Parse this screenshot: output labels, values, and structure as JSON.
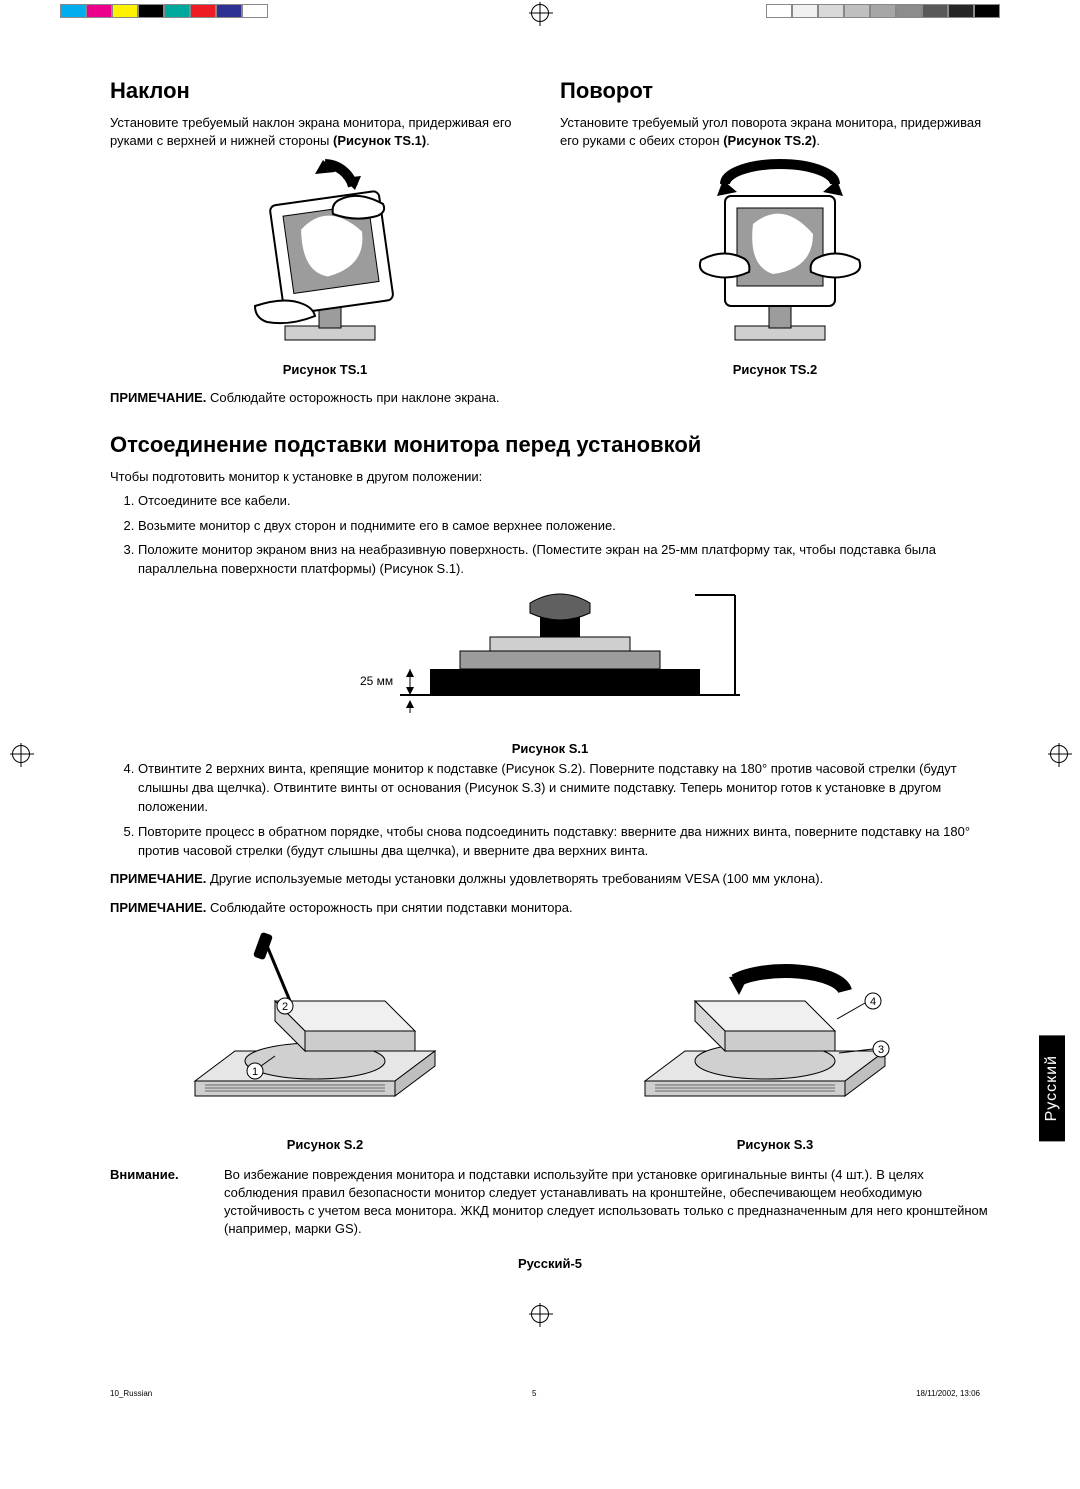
{
  "print_marks": {
    "bar_colors_left": [
      "#00aeef",
      "#ec008c",
      "#fff200",
      "#000000",
      "#00a99d",
      "#ed1c24",
      "#2e3192",
      "#ffffff"
    ],
    "bar_colors_right": [
      "#ffffff",
      "#f1f1f1",
      "#d9d9d9",
      "#bfbfbf",
      "#a6a6a6",
      "#8c8c8c",
      "#595959",
      "#262626",
      "#000000"
    ]
  },
  "tilt": {
    "heading": "Наклон",
    "body": "Установите требуемый наклон экрана монитора, придерживая его руками с верхней и нижней стороны",
    "ref_bold": "(Рисунок TS.1)",
    "caption": "Рисунок TS.1"
  },
  "swivel": {
    "heading": "Поворот",
    "body": "Установите требуемый угол поворота экрана монитора, придерживая его руками с обеих сторон",
    "ref_bold": "(Рисунок TS.2)",
    "caption": "Рисунок TS.2"
  },
  "note1": {
    "label": "ПРИМЕЧАНИЕ.",
    "text": "Соблюдайте осторожность при наклоне экрана."
  },
  "detach": {
    "heading": "Отсоединение подставки монитора перед установкой",
    "intro": "Чтобы подготовить монитор к установке в другом положении:",
    "steps_1_3": [
      "Отсоедините все кабели.",
      "Возьмите монитор с двух сторон и поднимите его в самое верхнее положение.",
      "Положите монитор экраном вниз на неабразивную поверхность. (Поместите экран на 25-мм платформу так, чтобы подставка была параллельна поверхности платформы) (Рисунок S.1)."
    ],
    "step3_bold": "Рисунок S.1",
    "s1_label": "25 мм",
    "s1_caption": "Рисунок S.1",
    "steps_4_5": [
      "Отвинтите 2 верхних винта, крепящие монитор к подставке (Рисунок S.2). Поверните подставку на 180° против часовой стрелки (будут слышны два щелчка). Отвинтите винты от основания (Рисунок S.3) и снимите подставку. Теперь монитор готов к установке в другом положении.",
      "Повторите процесс в обратном порядке, чтобы снова подсоединить подставку: вверните два нижних винта, поверните подставку на 180° против часовой стрелки (будут слышны два щелчка), и вверните два верхних винта."
    ],
    "s2_caption": "Рисунок S.2",
    "s3_caption": "Рисунок S.3"
  },
  "note2": {
    "label": "ПРИМЕЧАНИЕ.",
    "text": "Другие используемые методы установки должны удовлетворять требованиям VESA (100 мм уклона)."
  },
  "note3": {
    "label": "ПРИМЕЧАНИЕ.",
    "text": "Соблюдайте осторожность при снятии подставки монитора."
  },
  "caution": {
    "label": "Внимание.",
    "text": "Во избежание повреждения монитора и подставки используйте при установке оригинальные винты (4 шт.). В целях соблюдения правил безопасности монитор следует устанавливать на кронштейне, обеспечивающем необходимую устойчивость с учетом веса монитора. ЖКД монитор следует использовать только с предназначенным для него кронштейном (например, марки GS)."
  },
  "lang_tab": "Русский",
  "page_footer": "Русский-5",
  "tiny_footer": {
    "left": "10_Russian",
    "mid": "5",
    "right": "18/11/2002, 13:06"
  },
  "diagram_style": {
    "stroke": "#000000",
    "fill_dark": "#000000",
    "fill_mid": "#9c9c9c",
    "fill_light": "#e6e6e6",
    "fill_white": "#ffffff",
    "line_width_thin": 1,
    "line_width_thick": 2
  },
  "callouts": {
    "s2": [
      "1",
      "2"
    ],
    "s3": [
      "3",
      "4"
    ]
  }
}
